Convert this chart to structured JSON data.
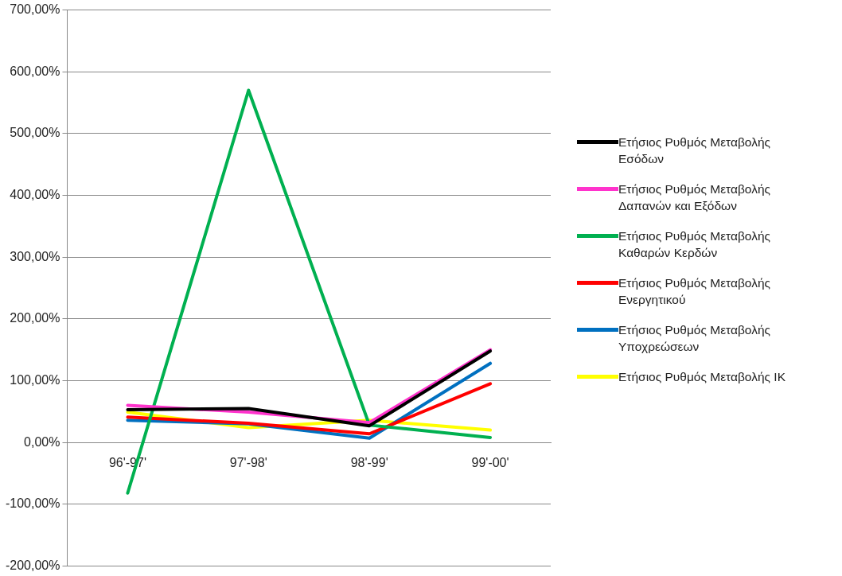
{
  "chart_data": {
    "type": "line",
    "categories": [
      "96'-97'",
      "97'-98'",
      "98'-99'",
      "99'-00'"
    ],
    "series": [
      {
        "name": "Ετήσιος Ρυθμός Μεταβολής Εσόδων",
        "color": "#000000",
        "values": [
          53,
          55,
          27,
          148
        ]
      },
      {
        "name": "Ετήσιος Ρυθμός Μεταβολής Δαπανών και Εξόδων",
        "color": "#ff33cc",
        "values": [
          60,
          49,
          32,
          150
        ]
      },
      {
        "name": "Ετήσιος Ρυθμός Μεταβολής Καθαρών Κερδών",
        "color": "#00b050",
        "values": [
          -82,
          570,
          28,
          8
        ]
      },
      {
        "name": "Ετήσιος Ρυθμός Μεταβολής Ενεργητικού",
        "color": "#ff0000",
        "values": [
          41,
          31,
          14,
          95
        ]
      },
      {
        "name": "Ετήσιος Ρυθμός Μεταβολής Υποχρεώσεων",
        "color": "#0070c0",
        "values": [
          36,
          30,
          7,
          128
        ]
      },
      {
        "name": "Ετήσιος Ρυθμός Μεταβολής ΙΚ",
        "color": "#ffff00",
        "values": [
          49,
          24,
          36,
          20
        ]
      }
    ],
    "ylim": [
      -200,
      700
    ],
    "yticks": [
      {
        "value": -200,
        "label": "-200,00%"
      },
      {
        "value": -100,
        "label": "-100,00%"
      },
      {
        "value": 0,
        "label": "0,00%"
      },
      {
        "value": 100,
        "label": "100,00%"
      },
      {
        "value": 200,
        "label": "200,00%"
      },
      {
        "value": 300,
        "label": "300,00%"
      },
      {
        "value": 400,
        "label": "400,00%"
      },
      {
        "value": 500,
        "label": "500,00%"
      },
      {
        "value": 600,
        "label": "600,00%"
      },
      {
        "value": 700,
        "label": "700,00%"
      }
    ],
    "grid": "y",
    "legend": "right",
    "marker": "none",
    "line_style": "solid"
  }
}
